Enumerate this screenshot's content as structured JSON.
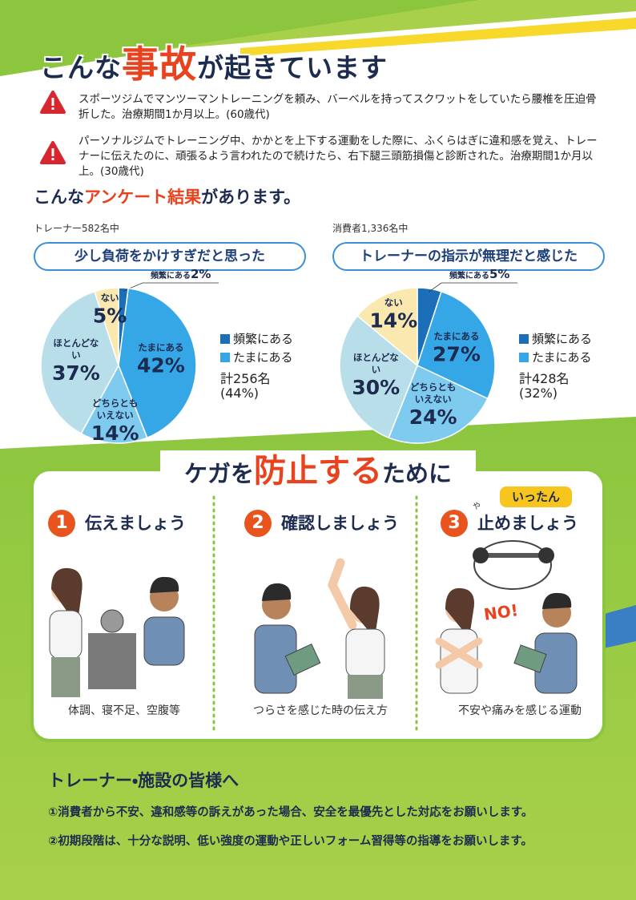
{
  "header": {
    "title_before": "こんな",
    "title_emphasis": "事故",
    "title_after": "が起きています"
  },
  "accidents": [
    {
      "text": "スポーツジムでマンツーマントレーニングを頼み、バーベルを持ってスクワットをしていたら腰椎を圧迫骨折した。治療期間1か月以上。(60歳代)"
    },
    {
      "text": "パーソナルジムでトレーニング中、かかとを上下する運動をした際に、ふくらはぎに違和感を覚え、トレーナーに伝えたのに、頑張るよう言われたので続けたら、右下腿三頭筋損傷と診断された。治療期間1か月以上。(30歳代)"
    }
  ],
  "survey": {
    "title_before": "こんな",
    "title_emphasis": "アンケート結果",
    "title_after": "があります。"
  },
  "chart_data": [
    {
      "type": "pie",
      "subtitle": "トレーナー582名中",
      "title": "少し負荷をかけすぎだと思った",
      "categories": [
        "頻繁にある",
        "たまにある",
        "どちらともいえない",
        "ほとんどない",
        "ない"
      ],
      "values": [
        2,
        42,
        14,
        37,
        5
      ],
      "value_labels": [
        "2%",
        "42%",
        "14%",
        "37%",
        "5%"
      ],
      "colors": [
        "#1a6fb8",
        "#35a6e6",
        "#7fcaef",
        "#b8dfe9",
        "#fbe8ae"
      ],
      "total": "計256名",
      "total_share": "(44%)"
    },
    {
      "type": "pie",
      "subtitle": "消費者1,336名中",
      "title": "トレーナーの指示が無理だと感じた",
      "categories": [
        "頻繁にある",
        "たまにある",
        "どちらともいえない",
        "ほとんどない",
        "ない"
      ],
      "values": [
        5,
        27,
        24,
        30,
        14
      ],
      "value_labels": [
        "5%",
        "27%",
        "24%",
        "30%",
        "14%"
      ],
      "colors": [
        "#1a6fb8",
        "#35a6e6",
        "#7fcaef",
        "#b8dfe9",
        "#fbe8ae"
      ],
      "total": "計428名",
      "total_share": "(32%)"
    }
  ],
  "prevention": {
    "title_before": "ケガを",
    "title_emphasis": "防止する",
    "title_after": "ために",
    "steps": [
      {
        "number": "1",
        "heading": "伝えましょう",
        "caption": "体調、寝不足、空腹等"
      },
      {
        "number": "2",
        "heading": "確認しましょう",
        "caption": "つらさを感じた時の伝え方"
      },
      {
        "number": "3",
        "heading": "止めましょう",
        "ruby": "や",
        "badge": "いったん",
        "caption": "不安や痛みを感じる運動",
        "sign": "NO!"
      }
    ]
  },
  "notice": {
    "title": "トレーナー・施設の皆様へ",
    "items": [
      "①消費者から不安、違和感等の訴えがあった場合、安全を最優先とした対応をお願いします。",
      "②初期段階は、十分な説明、低い強度の運動や正しいフォーム習得等の指導をお願いします。"
    ]
  }
}
